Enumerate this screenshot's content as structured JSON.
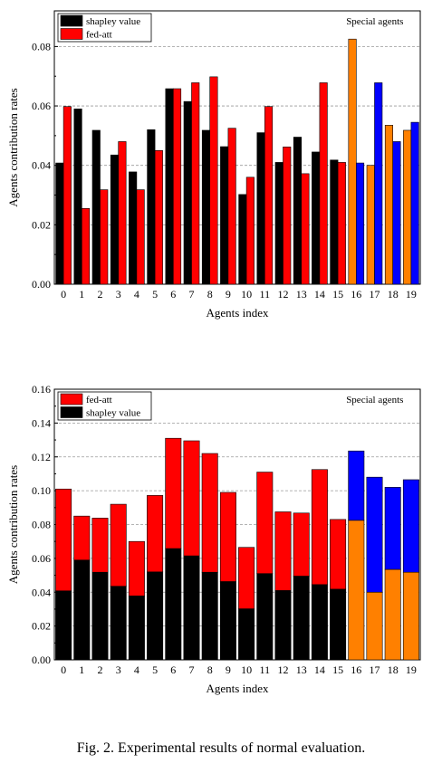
{
  "caption": "Fig. 2.  Experimental results of normal evaluation.",
  "colors": {
    "shapley": "#000000",
    "fed_att": "#ff0000",
    "special_orange": "#ff8000",
    "special_blue": "#0000ff"
  },
  "chart_data": [
    {
      "type": "bar",
      "title": "",
      "xlabel": "Agents index",
      "ylabel": "Agents contribution rates",
      "categories": [
        "0",
        "1",
        "2",
        "3",
        "4",
        "5",
        "6",
        "7",
        "8",
        "9",
        "10",
        "11",
        "12",
        "13",
        "14",
        "15",
        "16",
        "17",
        "18",
        "19"
      ],
      "ylim": [
        0,
        0.092
      ],
      "yticks": [
        "0.00",
        "0.02",
        "0.04",
        "0.06",
        "0.08"
      ],
      "grid": "horizontal dashed",
      "legend": "top-left",
      "annotation": "Special agents",
      "special_from_index": 16,
      "series": [
        {
          "name": "shapley value",
          "values": [
            0.0408,
            0.059,
            0.0518,
            0.0435,
            0.0378,
            0.052,
            0.0658,
            0.0615,
            0.0518,
            0.0463,
            0.0302,
            0.051,
            0.041,
            0.0495,
            0.0445,
            0.0418,
            0.0825,
            0.04,
            0.0535,
            0.0518
          ]
        },
        {
          "name": "fed-att",
          "values": [
            0.0598,
            0.0255,
            0.0318,
            0.048,
            0.0318,
            0.045,
            0.0658,
            0.0678,
            0.0698,
            0.0525,
            0.036,
            0.0598,
            0.0462,
            0.0372,
            0.0678,
            0.041,
            0.0408,
            0.0678,
            0.048,
            0.0545
          ]
        }
      ]
    },
    {
      "type": "bar",
      "title": "",
      "xlabel": "Agents index",
      "ylabel": "Agents contribution rates",
      "stacked": true,
      "categories": [
        "0",
        "1",
        "2",
        "3",
        "4",
        "5",
        "6",
        "7",
        "8",
        "9",
        "10",
        "11",
        "12",
        "13",
        "14",
        "15",
        "16",
        "17",
        "18",
        "19"
      ],
      "ylim": [
        0,
        0.16
      ],
      "yticks": [
        "0.00",
        "0.02",
        "0.04",
        "0.06",
        "0.08",
        "0.10",
        "0.12",
        "0.14",
        "0.16"
      ],
      "grid": "horizontal dashed",
      "legend": "top-left",
      "annotation": "Special agents",
      "special_from_index": 16,
      "series": [
        {
          "name": "shapley value",
          "values": [
            0.0408,
            0.059,
            0.0518,
            0.0435,
            0.0378,
            0.052,
            0.0658,
            0.0615,
            0.0518,
            0.0463,
            0.0302,
            0.051,
            0.041,
            0.0495,
            0.0445,
            0.0418,
            0.0825,
            0.04,
            0.0535,
            0.0518
          ]
        },
        {
          "name": "fed-att",
          "values": [
            0.0602,
            0.026,
            0.032,
            0.0485,
            0.0322,
            0.0452,
            0.0652,
            0.068,
            0.0702,
            0.0527,
            0.0363,
            0.06,
            0.0465,
            0.0373,
            0.068,
            0.0412,
            0.041,
            0.068,
            0.0485,
            0.0547
          ]
        }
      ]
    }
  ]
}
